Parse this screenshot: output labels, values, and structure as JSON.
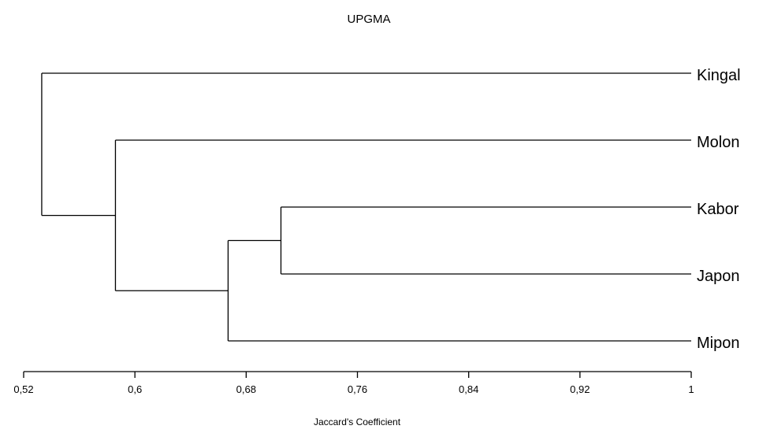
{
  "chart_data": {
    "type": "dendrogram",
    "title": "UPGMA",
    "xlabel": "Jaccard's Coefficient",
    "xlim": [
      0.52,
      1.0
    ],
    "ticks": [
      "0,52",
      "0,6",
      "0,68",
      "0,76",
      "0,84",
      "0,92",
      "1"
    ],
    "tick_values": [
      0.52,
      0.6,
      0.68,
      0.76,
      0.84,
      0.92,
      1.0
    ],
    "leaves": [
      "Kingal",
      "Molon",
      "Kabor",
      "Japon",
      "Mipon"
    ],
    "merges": [
      {
        "children": [
          "Kabor",
          "Japon"
        ],
        "similarity": 0.705
      },
      {
        "children": [
          "Kabor+Japon",
          "Mipon"
        ],
        "similarity": 0.667
      },
      {
        "children": [
          "Molon",
          "Kabor+Japon+Mipon"
        ],
        "similarity": 0.586
      },
      {
        "children": [
          "Kingal",
          "Molon+Kabor+Japon+Mipon"
        ],
        "similarity": 0.533
      }
    ],
    "line_color": "#000000"
  }
}
